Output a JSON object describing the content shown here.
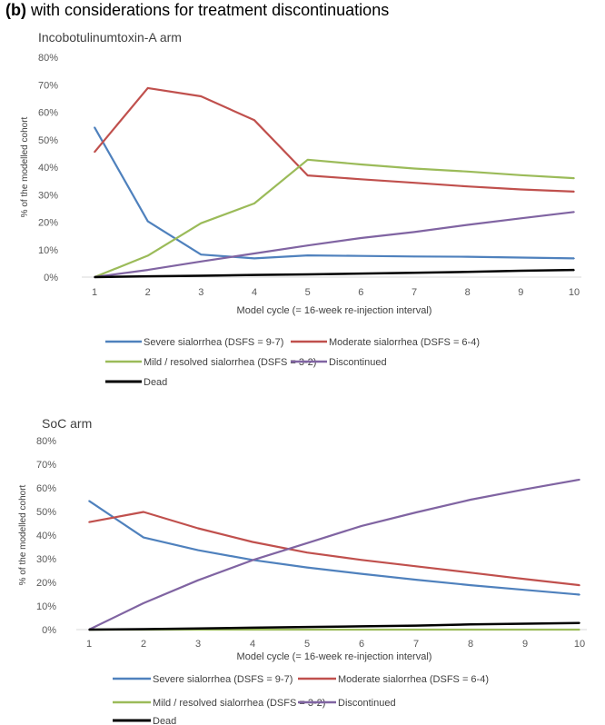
{
  "figure": {
    "panel_label": "(b)",
    "heading": "with considerations for treatment discontinuations"
  },
  "chart_data": [
    {
      "type": "line",
      "title": "Incobotulinumtoxin-A arm",
      "xlabel": "Model cycle (= 16-week re-injection interval)",
      "ylabel": "% of the modelled cohort",
      "ylim": [
        0,
        80
      ],
      "yticks": [
        "0%",
        "10%",
        "20%",
        "30%",
        "40%",
        "50%",
        "60%",
        "70%",
        "80%"
      ],
      "x": [
        1,
        2,
        3,
        4,
        5,
        6,
        7,
        8,
        9,
        10
      ],
      "legend_position": "bottom",
      "series": [
        {
          "name": "Severe sialorrhea (DSFS = 9-7)",
          "color": "#4F81BD",
          "values": [
            54.5,
            20.3,
            8.2,
            6.8,
            7.9,
            7.7,
            7.5,
            7.4,
            7.1,
            6.8
          ]
        },
        {
          "name": "Moderate sialorrhea (DSFS = 6-4)",
          "color": "#C0504D",
          "values": [
            45.5,
            68.8,
            65.8,
            57.1,
            37.0,
            35.6,
            34.3,
            33.0,
            31.9,
            31.1
          ]
        },
        {
          "name": "Mild / resolved sialorrhea (DSFS = 3-2)",
          "color": "#9BBB59",
          "values": [
            0.0,
            7.8,
            19.6,
            26.8,
            42.7,
            41.0,
            39.5,
            38.4,
            37.1,
            36.0
          ]
        },
        {
          "name": "Discontinued",
          "color": "#8064A2",
          "values": [
            0.0,
            2.6,
            5.7,
            8.6,
            11.5,
            14.2,
            16.4,
            19.0,
            21.4,
            23.7
          ]
        },
        {
          "name": "Dead",
          "color": "#000000",
          "values": [
            0.0,
            0.3,
            0.5,
            0.8,
            1.0,
            1.3,
            1.6,
            1.9,
            2.3,
            2.6
          ]
        }
      ]
    },
    {
      "type": "line",
      "title": "SoC arm",
      "xlabel": "Model cycle (= 16-week re-injection interval)",
      "ylabel": "% of the modelled cohort",
      "ylim": [
        0,
        80
      ],
      "yticks": [
        "0%",
        "10%",
        "20%",
        "30%",
        "40%",
        "50%",
        "60%",
        "70%",
        "80%"
      ],
      "x": [
        1,
        2,
        3,
        4,
        5,
        6,
        7,
        8,
        9,
        10
      ],
      "legend_position": "bottom",
      "series": [
        {
          "name": "Severe sialorrhea (DSFS = 9-7)",
          "color": "#4F81BD",
          "values": [
            54.5,
            39.0,
            33.6,
            29.5,
            26.3,
            23.6,
            21.1,
            18.8,
            16.8,
            14.8
          ]
        },
        {
          "name": "Moderate sialorrhea (DSFS = 6-4)",
          "color": "#C0504D",
          "values": [
            45.5,
            49.8,
            42.9,
            37.1,
            32.6,
            29.5,
            26.8,
            24.1,
            21.4,
            18.8
          ]
        },
        {
          "name": "Mild / resolved sialorrhea (DSFS = 3-2)",
          "color": "#9BBB59",
          "values": [
            0.0,
            0.0,
            0.0,
            0.0,
            0.0,
            0.0,
            0.0,
            0.0,
            0.0,
            0.0
          ]
        },
        {
          "name": "Discontinued",
          "color": "#8064A2",
          "values": [
            0.0,
            11.2,
            20.9,
            29.4,
            36.6,
            43.9,
            49.6,
            55.0,
            59.4,
            63.5
          ]
        },
        {
          "name": "Dead",
          "color": "#000000",
          "values": [
            0.0,
            0.2,
            0.5,
            0.8,
            1.1,
            1.4,
            1.7,
            2.2,
            2.5,
            2.8
          ]
        }
      ]
    }
  ]
}
